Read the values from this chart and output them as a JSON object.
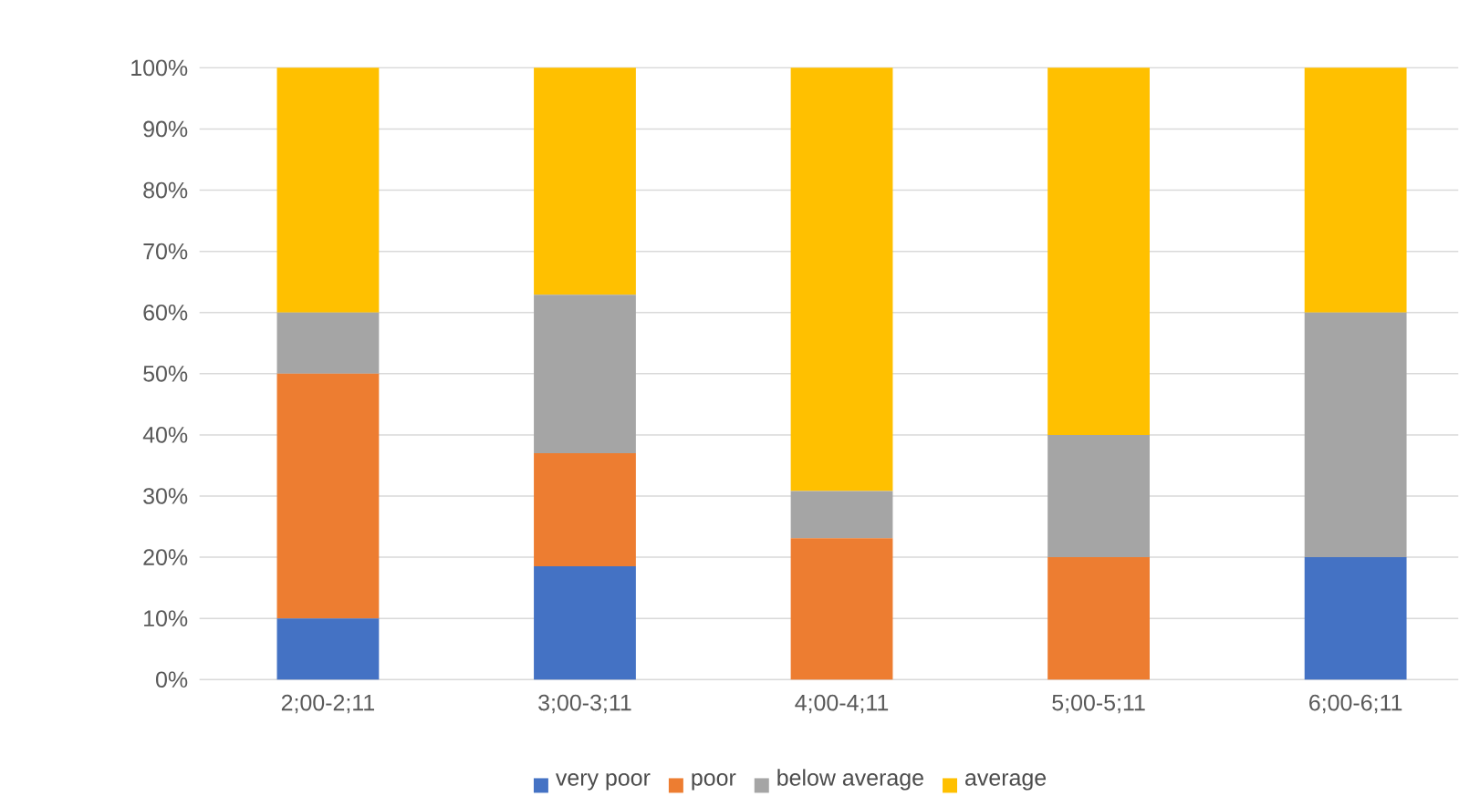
{
  "chart_data": {
    "type": "bar",
    "stacked": true,
    "categories": [
      "2;00-2;11",
      "3;00-3;11",
      "4;00-4;11",
      "5;00-5;11",
      "6;00-6;11"
    ],
    "series": [
      {
        "name": "very poor",
        "color": "#4472c4",
        "values": [
          10,
          18.5,
          0,
          0,
          20
        ]
      },
      {
        "name": "poor",
        "color": "#ed7d31",
        "values": [
          40,
          18.5,
          23.1,
          20,
          0
        ]
      },
      {
        "name": "below average",
        "color": "#a5a5a5",
        "values": [
          10,
          25.9,
          7.7,
          20,
          40
        ]
      },
      {
        "name": "average",
        "color": "#ffc000",
        "values": [
          40,
          37.1,
          69.2,
          60,
          40
        ]
      }
    ],
    "ylim": [
      0,
      100
    ],
    "yticks": [
      {
        "value": 0,
        "label": "0%"
      },
      {
        "value": 10,
        "label": "10%"
      },
      {
        "value": 20,
        "label": "20%"
      },
      {
        "value": 30,
        "label": "30%"
      },
      {
        "value": 40,
        "label": "40%"
      },
      {
        "value": 50,
        "label": "50%"
      },
      {
        "value": 60,
        "label": "60%"
      },
      {
        "value": 70,
        "label": "70%"
      },
      {
        "value": 80,
        "label": "80%"
      },
      {
        "value": 90,
        "label": "90%"
      },
      {
        "value": 100,
        "label": "100%"
      }
    ],
    "grid": "y",
    "legend": "bottom"
  }
}
